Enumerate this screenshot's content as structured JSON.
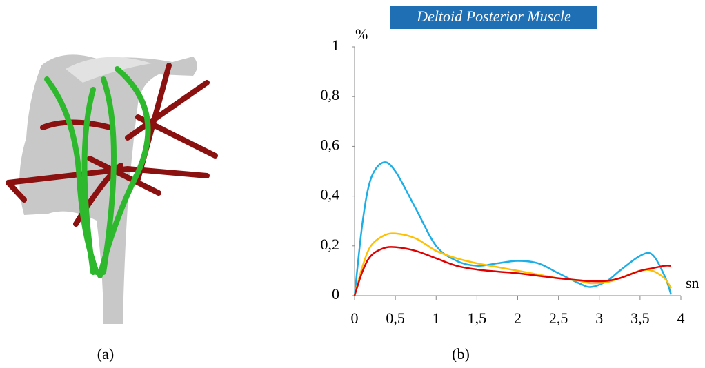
{
  "chart_data": {
    "type": "line",
    "title": "Deltoid Posterior Muscle",
    "y_label": "%",
    "x_label": "sn",
    "x": [
      0,
      0.1,
      0.2,
      0.35,
      0.5,
      0.75,
      1,
      1.25,
      1.5,
      1.75,
      2,
      2.25,
      2.5,
      2.75,
      2.9,
      3.1,
      3.25,
      3.5,
      3.65,
      3.8,
      3.88
    ],
    "series": [
      {
        "color": "#1eaee6",
        "values": [
          0,
          0.3,
          0.47,
          0.535,
          0.5,
          0.35,
          0.2,
          0.14,
          0.12,
          0.13,
          0.14,
          0.13,
          0.09,
          0.05,
          0.035,
          0.06,
          0.1,
          0.16,
          0.165,
          0.08,
          0.005
        ]
      },
      {
        "color": "#ffc000",
        "values": [
          0,
          0.12,
          0.2,
          0.24,
          0.25,
          0.23,
          0.18,
          0.15,
          0.13,
          0.115,
          0.1,
          0.085,
          0.07,
          0.06,
          0.05,
          0.055,
          0.07,
          0.1,
          0.1,
          0.07,
          0.03
        ]
      },
      {
        "color": "#e00000",
        "values": [
          0,
          0.1,
          0.16,
          0.19,
          0.195,
          0.18,
          0.15,
          0.12,
          0.105,
          0.097,
          0.09,
          0.08,
          0.07,
          0.062,
          0.058,
          0.06,
          0.07,
          0.1,
          0.11,
          0.12,
          0.12
        ]
      }
    ],
    "xlim": [
      0,
      4
    ],
    "ylim": [
      0,
      1
    ],
    "xticks": [
      0,
      {
        "value": 0.5,
        "label": "0,5"
      },
      1,
      {
        "value": 1.5,
        "label": "1,5"
      },
      2,
      {
        "value": 2.5,
        "label": "2,5"
      },
      3,
      {
        "value": 3.5,
        "label": "3,5"
      },
      4
    ],
    "yticks": [
      0,
      {
        "value": 0.2,
        "label": "0,2"
      },
      {
        "value": 0.4,
        "label": "0,4"
      },
      {
        "value": 0.6,
        "label": "0,6"
      },
      {
        "value": 0.8,
        "label": "0,8"
      },
      1
    ],
    "grid": false
  },
  "captions": [
    "(a)",
    "(b)"
  ]
}
